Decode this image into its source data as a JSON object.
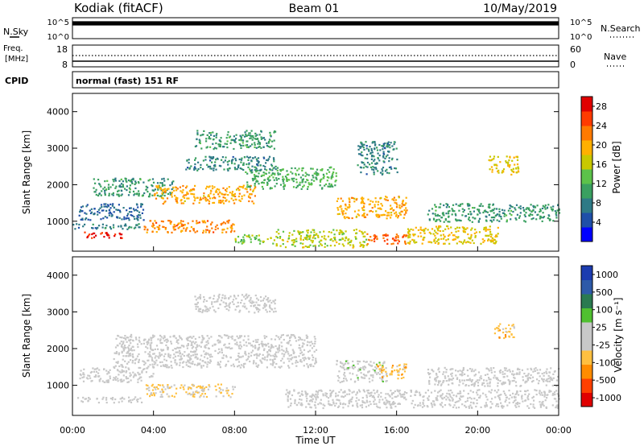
{
  "header": {
    "radar": "Kodiak (fitACF)",
    "beam": "Beam 01",
    "date": "10/May/2019"
  },
  "top_panels": {
    "nsky_label": "N.Sky",
    "nsky_ticks": [
      "10^5",
      "10^0"
    ],
    "nsearch_label": "N.Search",
    "nsearch_ticks": [
      "10^5",
      "10^0"
    ],
    "freq_label_1": "Freq.",
    "freq_label_2": "[MHz]",
    "freq_ticks": [
      "18",
      "8"
    ],
    "nave_label": "Nave",
    "nave_ticks": [
      "60",
      "0"
    ],
    "cpid_label": "CPID",
    "cpid_text": "normal (fast) 151 RF"
  },
  "colors": {
    "power_scale": [
      "#0000ff",
      "#1f4fa8",
      "#2e7a86",
      "#3aa060",
      "#5cc24a",
      "#c8c800",
      "#ffb000",
      "#ff7a00",
      "#ff3b00",
      "#e00000"
    ],
    "velocity_scale": [
      "#e00000",
      "#ff4000",
      "#ff8c00",
      "#ffc040",
      "#c8c8c8",
      "#c8c8c8",
      "#50c030",
      "#2a7a50",
      "#2e5aa8",
      "#1c3cb0"
    ]
  },
  "chart_data": [
    {
      "type": "heatmap",
      "title": "Power",
      "ylabel": "Slant Range [km]",
      "xlabel": "",
      "xlim": [
        "00:00",
        "24:00"
      ],
      "ylim": [
        180,
        4500
      ],
      "yticks": [
        "1000",
        "2000",
        "3000",
        "4000"
      ],
      "colorbar": {
        "label": "Power [dB]",
        "ticks": [
          "4",
          "8",
          "12",
          "16",
          "20",
          "24",
          "28"
        ],
        "range": [
          0,
          30
        ]
      },
      "regions": [
        {
          "t0": 0.5,
          "t1": 2.5,
          "r0": 550,
          "r1": 720,
          "level": 28
        },
        {
          "t0": 0.0,
          "t1": 3.5,
          "r0": 800,
          "r1": 950,
          "level": 8
        },
        {
          "t0": 3.5,
          "t1": 8.0,
          "r0": 700,
          "r1": 1050,
          "level": 22
        },
        {
          "t0": 8.0,
          "t1": 10.0,
          "r0": 400,
          "r1": 650,
          "level": 14
        },
        {
          "t0": 0.3,
          "t1": 3.5,
          "r0": 1050,
          "r1": 1500,
          "level": 6
        },
        {
          "t0": 1.0,
          "t1": 5.0,
          "r0": 1700,
          "r1": 2200,
          "level": 10
        },
        {
          "t0": 4.0,
          "t1": 9.0,
          "r0": 1500,
          "r1": 2000,
          "level": 20
        },
        {
          "t0": 8.5,
          "t1": 13.0,
          "r0": 1900,
          "r1": 2500,
          "level": 12
        },
        {
          "t0": 5.5,
          "t1": 10.0,
          "r0": 2400,
          "r1": 2800,
          "level": 8
        },
        {
          "t0": 6.0,
          "t1": 10.0,
          "r0": 3000,
          "r1": 3500,
          "level": 10
        },
        {
          "t0": 14.0,
          "t1": 16.0,
          "r0": 2300,
          "r1": 3200,
          "level": 8
        },
        {
          "t0": 13.0,
          "t1": 16.5,
          "r0": 1100,
          "r1": 1700,
          "level": 20
        },
        {
          "t0": 10.0,
          "t1": 14.5,
          "r0": 300,
          "r1": 800,
          "level": 16
        },
        {
          "t0": 14.5,
          "t1": 16.5,
          "r0": 400,
          "r1": 700,
          "level": 24
        },
        {
          "t0": 16.5,
          "t1": 21.0,
          "r0": 400,
          "r1": 900,
          "level": 18
        },
        {
          "t0": 17.5,
          "t1": 24.0,
          "r0": 1000,
          "r1": 1500,
          "level": 10
        },
        {
          "t0": 20.5,
          "t1": 22.0,
          "r0": 2300,
          "r1": 2800,
          "level": 18
        }
      ]
    },
    {
      "type": "heatmap",
      "title": "Velocity",
      "ylabel": "Slant Range [km]",
      "xlabel": "Time UT",
      "xlim": [
        "00:00",
        "24:00"
      ],
      "ylim": [
        180,
        4500
      ],
      "yticks": [
        "1000",
        "2000",
        "3000",
        "4000"
      ],
      "xticks": [
        "00:00",
        "04:00",
        "08:00",
        "12:00",
        "16:00",
        "20:00",
        "00:00"
      ],
      "colorbar": {
        "label": "Velocity [m s⁻¹]",
        "ticks": [
          "1000",
          "500",
          "100",
          "25",
          "-25",
          "-100",
          "-500",
          "-1000"
        ],
        "range": [
          -1000,
          1000
        ]
      },
      "regions": [
        {
          "t0": 0.0,
          "t1": 3.5,
          "r0": 550,
          "r1": 700,
          "level": 0
        },
        {
          "t0": 3.5,
          "t1": 8.0,
          "r0": 700,
          "r1": 1050,
          "level": -200
        },
        {
          "t0": 0.3,
          "t1": 4.0,
          "r0": 1100,
          "r1": 1500,
          "level": 0
        },
        {
          "t0": 2.0,
          "t1": 12.0,
          "r0": 1500,
          "r1": 2400,
          "level": 0
        },
        {
          "t0": 6.0,
          "t1": 10.0,
          "r0": 3000,
          "r1": 3500,
          "level": 0
        },
        {
          "t0": 13.0,
          "t1": 15.5,
          "r0": 1100,
          "r1": 1700,
          "level": 80
        },
        {
          "t0": 15.0,
          "t1": 16.5,
          "r0": 1200,
          "r1": 1600,
          "level": -300
        },
        {
          "t0": 10.5,
          "t1": 24.0,
          "r0": 400,
          "r1": 900,
          "level": 0
        },
        {
          "t0": 17.5,
          "t1": 24.0,
          "r0": 1000,
          "r1": 1500,
          "level": 0
        },
        {
          "t0": 20.8,
          "t1": 21.8,
          "r0": 2300,
          "r1": 2700,
          "level": -300
        }
      ]
    }
  ]
}
